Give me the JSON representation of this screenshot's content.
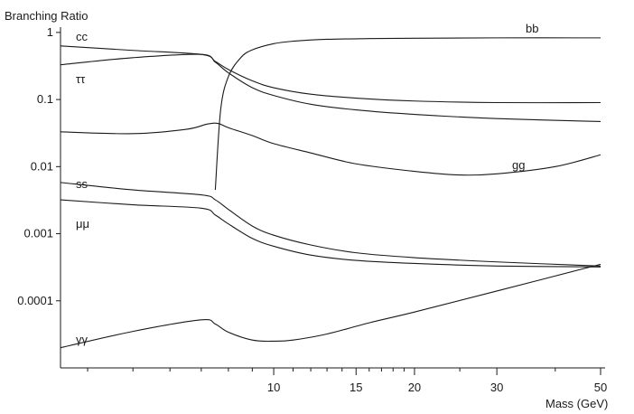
{
  "chart_data": {
    "type": "line",
    "title": "",
    "ylabel": "Branching Ratio",
    "xlabel": "Mass (GeV)",
    "x_scale": "log",
    "y_scale": "log",
    "xlim": [
      3.5,
      50
    ],
    "ylim": [
      1e-05,
      1.2
    ],
    "grid": false,
    "y_ticks": [
      {
        "value": 1,
        "label": "1"
      },
      {
        "value": 0.1,
        "label": "0.1"
      },
      {
        "value": 0.01,
        "label": "0.01"
      },
      {
        "value": 0.001,
        "label": "0.001"
      },
      {
        "value": 0.0001,
        "label": "0.0001"
      }
    ],
    "x_ticks": [
      {
        "value": 10,
        "label": "10"
      },
      {
        "value": 15,
        "label": "15"
      },
      {
        "value": 20,
        "label": "20"
      },
      {
        "value": 30,
        "label": "30"
      },
      {
        "value": 50,
        "label": "50"
      }
    ],
    "x_minor_ticks": [
      4,
      5,
      6,
      7,
      8,
      9,
      11,
      12,
      13,
      14,
      16,
      17,
      18,
      19,
      25,
      40
    ],
    "series": [
      {
        "name": "bb",
        "x": [
          7.5,
          7.7,
          8,
          8.5,
          9,
          10,
          11,
          13,
          16,
          20,
          30,
          50
        ],
        "y": [
          0.0045,
          0.07,
          0.22,
          0.42,
          0.55,
          0.68,
          0.74,
          0.79,
          0.81,
          0.82,
          0.83,
          0.83
        ]
      },
      {
        "name": "cc",
        "x": [
          3.5,
          5,
          7,
          7.5,
          8,
          9,
          10,
          12,
          15,
          20,
          30,
          50
        ],
        "y": [
          0.63,
          0.54,
          0.47,
          0.37,
          0.28,
          0.19,
          0.15,
          0.12,
          0.105,
          0.095,
          0.09,
          0.09
        ]
      },
      {
        "name": "ττ",
        "x": [
          3.5,
          5,
          7,
          7.5,
          8,
          9,
          10,
          12,
          15,
          20,
          30,
          50
        ],
        "y": [
          0.33,
          0.42,
          0.47,
          0.36,
          0.25,
          0.15,
          0.115,
          0.085,
          0.07,
          0.06,
          0.052,
          0.047
        ]
      },
      {
        "name": "gg",
        "x": [
          3.5,
          5,
          6.5,
          7.2,
          7.6,
          8,
          9,
          10,
          12,
          15,
          20,
          25,
          30,
          40,
          50
        ],
        "y": [
          0.033,
          0.031,
          0.036,
          0.043,
          0.044,
          0.038,
          0.029,
          0.022,
          0.016,
          0.011,
          0.0085,
          0.0075,
          0.0078,
          0.01,
          0.015
        ]
      },
      {
        "name": "ss",
        "x": [
          3.5,
          5,
          7,
          7.5,
          8,
          9,
          10,
          12,
          15,
          20,
          30,
          50
        ],
        "y": [
          0.0058,
          0.0045,
          0.0038,
          0.0032,
          0.0023,
          0.0013,
          0.00095,
          0.00068,
          0.00052,
          0.00044,
          0.00038,
          0.00033
        ]
      },
      {
        "name": "μμ",
        "x": [
          3.5,
          5,
          7,
          7.5,
          8,
          9,
          10,
          12,
          15,
          20,
          30,
          50
        ],
        "y": [
          0.0032,
          0.0027,
          0.0024,
          0.0019,
          0.0014,
          0.00085,
          0.00065,
          0.00048,
          0.0004,
          0.00036,
          0.00033,
          0.00032
        ]
      },
      {
        "name": "γγ",
        "x": [
          3.5,
          5,
          7,
          7.5,
          8,
          9,
          10,
          11,
          13,
          16,
          20,
          30,
          50
        ],
        "y": [
          2e-05,
          3.5e-05,
          5.2e-05,
          4.5e-05,
          3.4e-05,
          2.6e-05,
          2.5e-05,
          2.6e-05,
          3.2e-05,
          4.7e-05,
          6.8e-05,
          0.00014,
          0.00035
        ]
      }
    ]
  }
}
